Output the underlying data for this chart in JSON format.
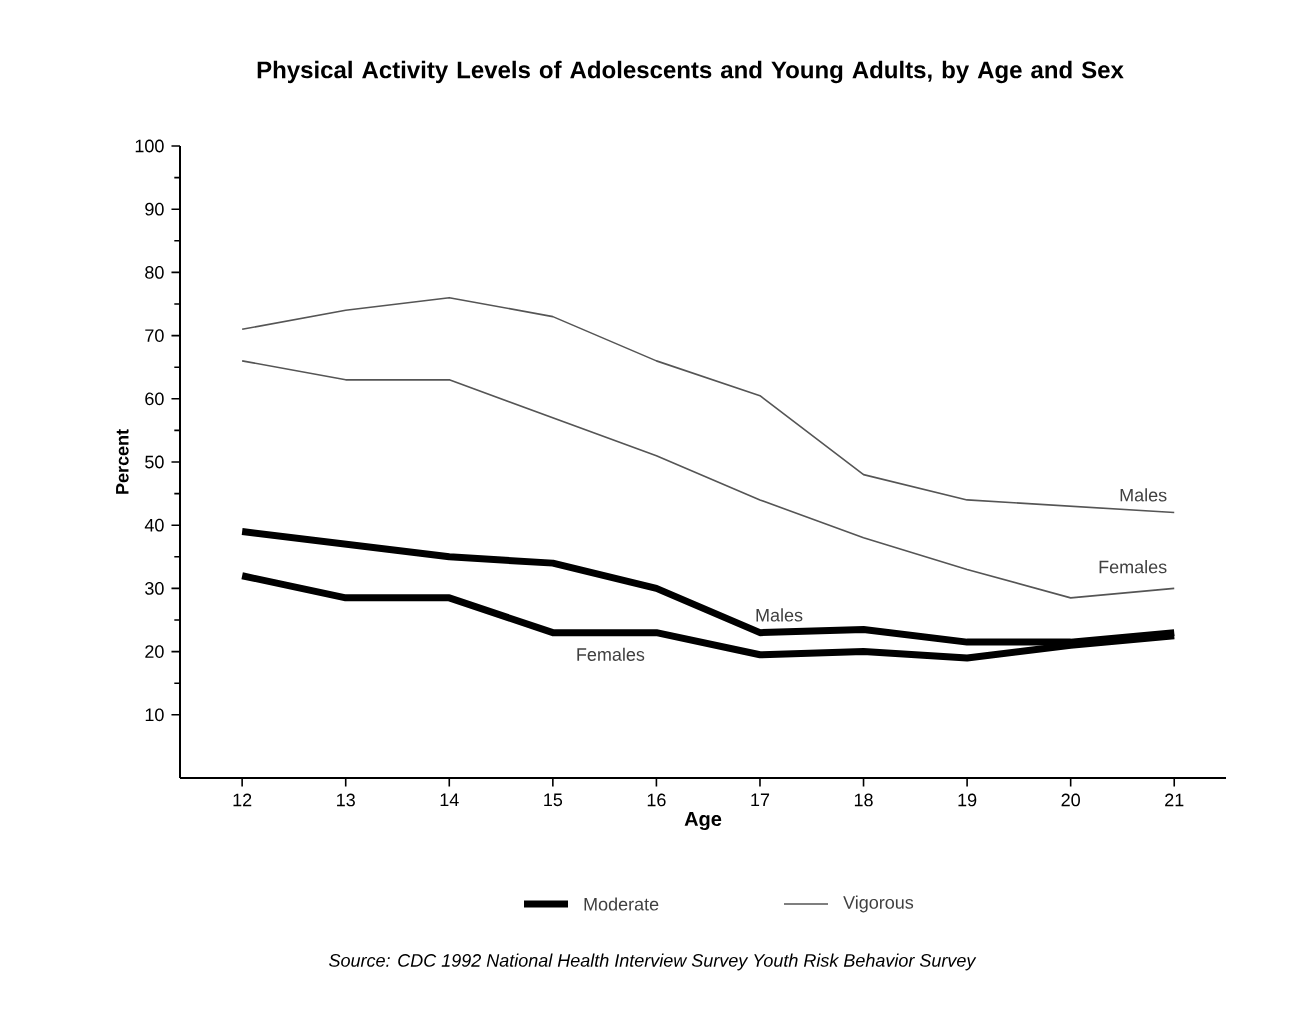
{
  "chart_data": {
    "type": "line",
    "title": "Physical Activity Levels of Adolescents and Young Adults, by Age and Sex",
    "xlabel": "Age",
    "ylabel": "Percent",
    "x": [
      12,
      13,
      14,
      15,
      16,
      17,
      18,
      19,
      20,
      21
    ],
    "series": [
      {
        "name": "Males",
        "color": "#000000",
        "values": [
          39,
          37,
          35,
          34,
          30,
          23,
          23.5,
          21.5,
          21.5,
          23
        ]
      },
      {
        "name": "Females",
        "color": "#000000",
        "values": [
          32,
          28.5,
          28.5,
          23,
          23,
          19.5,
          20,
          19,
          21,
          22.5
        ]
      },
      {
        "name": "Males",
        "color": "#555555",
        "values": [
          71,
          74,
          76,
          73,
          66,
          60.5,
          48,
          44,
          43,
          42
        ]
      },
      {
        "name": "Females",
        "color": "#555555",
        "values": [
          66,
          63,
          63,
          57,
          51,
          44,
          38,
          33,
          28.5,
          30
        ]
      }
    ],
    "xlim": [
      11.4,
      21.5
    ],
    "xticks": [
      12,
      13,
      14,
      15,
      16,
      17,
      18,
      19,
      20,
      21
    ],
    "ylim": [
      0,
      100
    ],
    "yticks": [
      10,
      20,
      30,
      40,
      50,
      60,
      70,
      80,
      90,
      100
    ],
    "grid": false,
    "legend": "bottom",
    "marker": "none",
    "line_style": "solid",
    "annotations": [
      "Moderate",
      "Vigorous",
      "Source: CDC 1992 National Health Interview Survey Youth Risk Behavior Survey"
    ]
  }
}
